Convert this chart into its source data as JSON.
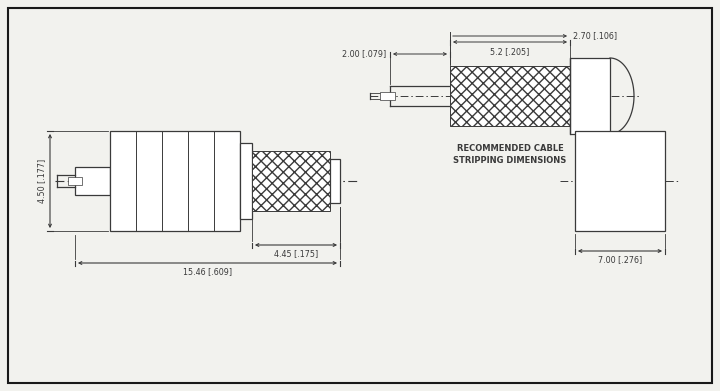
{
  "bg_color": "#f2f2ee",
  "line_color": "#3a3a3a",
  "border_color": "#1a1a1a",
  "dim_main_height_label": "4.50 [.177]",
  "dim_main_length_label": "15.46 [.609]",
  "dim_knurl_length_label": "4.45 [.175]",
  "dim_cable_outer_label": "2.70 [.106]",
  "dim_cable_braid_label": "5.2 [.205]",
  "dim_cable_stripped_label": "2.00 [.079]",
  "dim_side_width_label": "7.00 [.276]",
  "rec_cable_text1": "RECOMMENDED CABLE",
  "rec_cable_text2": "STRIPPING DIMENSIONS"
}
